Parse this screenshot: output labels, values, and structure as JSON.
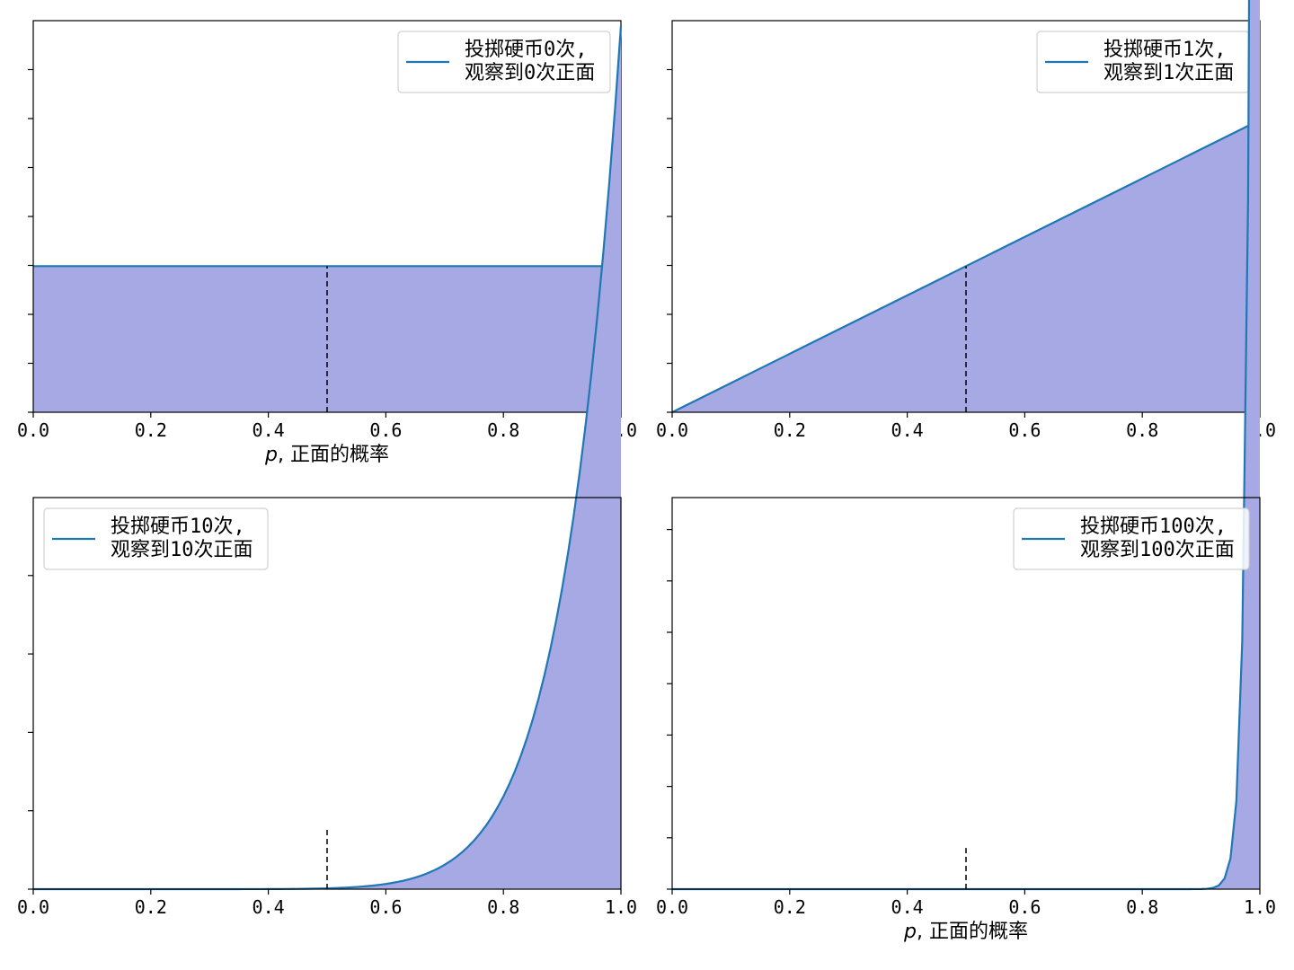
{
  "chart_data": [
    {
      "type": "area",
      "legend": [
        "投掷硬币0次,",
        "观察到0次正面"
      ],
      "legend_position": "upper-right",
      "xlabel": "p, 正面的概率",
      "x_ticks": [
        "0.0",
        "0.2",
        "0.4",
        "0.6",
        "0.8",
        "1.0"
      ],
      "xlim": [
        0,
        1
      ],
      "ylim": [
        0,
        2.68
      ],
      "y_ticks_count": 8,
      "vline_x": 0.5,
      "vline_top": 1.0,
      "series": [
        {
          "alpha_prior": 1,
          "beta_prior": 1,
          "flips": 0,
          "heads": 0,
          "peak_density": 1.5
        }
      ],
      "line_color": "#1f77b4",
      "fill_color": "#a6a9e3"
    },
    {
      "type": "area",
      "legend": [
        "投掷硬币1次,",
        "观察到1次正面"
      ],
      "legend_position": "upper-right",
      "xlabel": "",
      "x_ticks": [
        "0.0",
        "0.2",
        "0.4",
        "0.6",
        "0.8",
        "1.0"
      ],
      "xlim": [
        0,
        1
      ],
      "ylim": [
        0,
        2.68
      ],
      "y_ticks_count": 8,
      "vline_x": 0.5,
      "vline_top": 1.0,
      "series": [
        {
          "alpha_prior": 1,
          "beta_prior": 1,
          "flips": 1,
          "heads": 1,
          "peak_density": 1.78
        }
      ],
      "line_color": "#1f77b4",
      "fill_color": "#a6a9e3"
    },
    {
      "type": "area",
      "legend": [
        "投掷硬币10次,",
        "观察到10次正面"
      ],
      "legend_position": "upper-left",
      "xlabel": "",
      "x_ticks": [
        "0.0",
        "0.2",
        "0.4",
        "0.6",
        "0.8",
        "1.0"
      ],
      "xlim": [
        0,
        1
      ],
      "ylim": [
        0,
        4.99
      ],
      "y_ticks_count": 5,
      "vline_x": 0.5,
      "vline_top": 0.8,
      "series": [
        {
          "alpha_prior": 1,
          "beta_prior": 1,
          "flips": 10,
          "heads": 10,
          "peak_density": 4.99
        }
      ],
      "line_color": "#1f77b4",
      "fill_color": "#a6a9e3"
    },
    {
      "type": "area",
      "legend": [
        "投掷硬币100次,",
        "观察到100次正面"
      ],
      "legend_position": "upper-right",
      "xlabel": "p, 正面的概率",
      "x_ticks": [
        "0.0",
        "0.2",
        "0.4",
        "0.6",
        "0.8",
        "1.0"
      ],
      "xlim": [
        0,
        1
      ],
      "ylim": [
        0,
        7.6
      ],
      "y_ticks_count": 8,
      "vline_x": 0.5,
      "vline_top": 0.8,
      "series": [
        {
          "alpha_prior": 1,
          "beta_prior": 1,
          "flips": 100,
          "heads": 100,
          "peak_density": 7.6
        }
      ],
      "line_color": "#1f77b4",
      "fill_color": "#a6a9e3"
    }
  ]
}
